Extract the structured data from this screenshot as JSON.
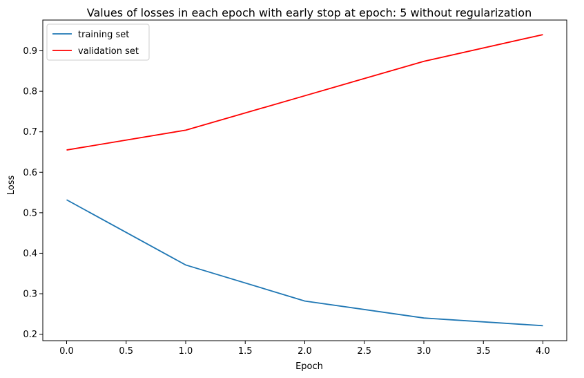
{
  "chart_data": {
    "type": "line",
    "title": "Values of losses in each epoch with early stop at epoch: 5 without regularization",
    "xlabel": "Epoch",
    "ylabel": "Loss",
    "x": [
      0,
      1,
      2,
      3,
      4
    ],
    "xlim": [
      -0.2,
      4.2
    ],
    "ylim": [
      0.184,
      0.976
    ],
    "xticks": [
      0.0,
      0.5,
      1.0,
      1.5,
      2.0,
      2.5,
      3.0,
      3.5,
      4.0
    ],
    "xtick_labels": [
      "0.0",
      "0.5",
      "1.0",
      "1.5",
      "2.0",
      "2.5",
      "3.0",
      "3.5",
      "4.0"
    ],
    "yticks": [
      0.2,
      0.3,
      0.4,
      0.5,
      0.6,
      0.7,
      0.8,
      0.9
    ],
    "ytick_labels": [
      "0.2",
      "0.3",
      "0.4",
      "0.5",
      "0.6",
      "0.7",
      "0.8",
      "0.9"
    ],
    "grid": false,
    "legend_position": "top-left",
    "series": [
      {
        "name": "training set",
        "color": "#1f77b4",
        "values": [
          0.532,
          0.371,
          0.282,
          0.24,
          0.221
        ]
      },
      {
        "name": "validation set",
        "color": "#ff0000",
        "values": [
          0.655,
          0.704,
          0.789,
          0.874,
          0.94
        ]
      }
    ]
  }
}
